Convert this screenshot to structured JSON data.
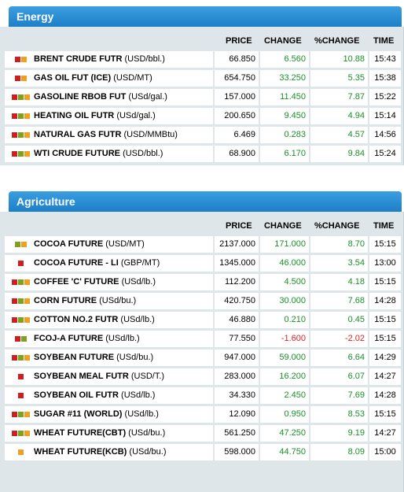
{
  "columns": {
    "price": "PRICE",
    "change": "CHANGE",
    "pchange": "%CHANGE",
    "time": "TIME"
  },
  "energy": {
    "title": "Energy",
    "rows": [
      {
        "name": "BRENT CRUDE FUTR",
        "unit": "(USD/bbl.)",
        "price": "66.850",
        "change": "6.560",
        "pchange": "10.88",
        "time": "15:43",
        "marks": [
          "#cc2020",
          "#f0a020"
        ],
        "negative": false
      },
      {
        "name": "GAS OIL FUT (ICE)",
        "unit": "(USD/MT)",
        "price": "654.750",
        "change": "33.250",
        "pchange": "5.35",
        "time": "15:38",
        "marks": [
          "#cc2020",
          "#f0a020"
        ],
        "negative": false
      },
      {
        "name": "GASOLINE RBOB FUT",
        "unit": "(USd/gal.)",
        "price": "157.000",
        "change": "11.450",
        "pchange": "7.87",
        "time": "15:22",
        "marks": [
          "#cc2020",
          "#80a020",
          "#f0a020"
        ],
        "negative": false
      },
      {
        "name": "HEATING OIL FUTR",
        "unit": "(USd/gal.)",
        "price": "200.650",
        "change": "9.450",
        "pchange": "4.94",
        "time": "15:14",
        "marks": [
          "#cc2020",
          "#80a020",
          "#f0a020"
        ],
        "negative": false
      },
      {
        "name": "NATURAL GAS FUTR",
        "unit": "(USD/MMBtu)",
        "price": "6.469",
        "change": "0.283",
        "pchange": "4.57",
        "time": "14:56",
        "marks": [
          "#cc2020",
          "#80a020",
          "#f0a020"
        ],
        "negative": false
      },
      {
        "name": "WTI CRUDE FUTURE",
        "unit": "(USD/bbl.)",
        "price": "68.900",
        "change": "6.170",
        "pchange": "9.84",
        "time": "15:24",
        "marks": [
          "#cc2020",
          "#80a020",
          "#f0a020"
        ],
        "negative": false
      }
    ]
  },
  "agriculture": {
    "title": "Agriculture",
    "rows": [
      {
        "name": "COCOA FUTURE",
        "unit": "(USD/MT)",
        "price": "2137.000",
        "change": "171.000",
        "pchange": "8.70",
        "time": "15:15",
        "marks": [
          "#80a020",
          "#f0a020"
        ],
        "negative": false
      },
      {
        "name": "COCOA FUTURE - LI",
        "unit": "(GBP/MT)",
        "price": "1345.000",
        "change": "46.000",
        "pchange": "3.54",
        "time": "13:00",
        "marks": [
          "#cc2020"
        ],
        "negative": false
      },
      {
        "name": "COFFEE 'C' FUTURE",
        "unit": "(USd/lb.)",
        "price": "112.200",
        "change": "4.500",
        "pchange": "4.18",
        "time": "15:15",
        "marks": [
          "#cc2020",
          "#80a020",
          "#f0a020"
        ],
        "negative": false
      },
      {
        "name": "CORN FUTURE",
        "unit": "(USd/bu.)",
        "price": "420.750",
        "change": "30.000",
        "pchange": "7.68",
        "time": "14:28",
        "marks": [
          "#cc2020",
          "#80a020",
          "#f0a020"
        ],
        "negative": false
      },
      {
        "name": "COTTON NO.2 FUTR",
        "unit": "(USd/lb.)",
        "price": "46.880",
        "change": "0.210",
        "pchange": "0.45",
        "time": "15:15",
        "marks": [
          "#cc2020",
          "#80a020",
          "#f0a020"
        ],
        "negative": false
      },
      {
        "name": "FCOJ-A FUTURE",
        "unit": "(USd/lb.)",
        "price": "77.550",
        "change": "-1.600",
        "pchange": "-2.02",
        "time": "15:15",
        "marks": [
          "#cc2020",
          "#80a020"
        ],
        "negative": true
      },
      {
        "name": "SOYBEAN FUTURE",
        "unit": "(USd/bu.)",
        "price": "947.000",
        "change": "59.000",
        "pchange": "6.64",
        "time": "14:29",
        "marks": [
          "#cc2020",
          "#80a020",
          "#f0a020"
        ],
        "negative": false
      },
      {
        "name": "SOYBEAN MEAL FUTR",
        "unit": "(USD/T.)",
        "price": "283.000",
        "change": "16.200",
        "pchange": "6.07",
        "time": "14:27",
        "marks": [
          "#cc2020"
        ],
        "negative": false
      },
      {
        "name": "SOYBEAN OIL FUTR",
        "unit": "(USd/lb.)",
        "price": "34.330",
        "change": "2.450",
        "pchange": "7.69",
        "time": "14:28",
        "marks": [
          "#cc2020"
        ],
        "negative": false
      },
      {
        "name": "SUGAR #11 (WORLD)",
        "unit": "(USd/lb.)",
        "price": "12.090",
        "change": "0.950",
        "pchange": "8.53",
        "time": "15:15",
        "marks": [
          "#cc2020",
          "#80a020",
          "#f0a020"
        ],
        "negative": false
      },
      {
        "name": "WHEAT FUTURE(CBT)",
        "unit": "(USd/bu.)",
        "price": "561.250",
        "change": "47.250",
        "pchange": "9.19",
        "time": "14:27",
        "marks": [
          "#cc2020",
          "#80a020",
          "#f0a020"
        ],
        "negative": false
      },
      {
        "name": "WHEAT FUTURE(KCB)",
        "unit": "(USd/bu.)",
        "price": "598.000",
        "change": "44.750",
        "pchange": "8.09",
        "time": "15:00",
        "marks": [
          "#f0a020"
        ],
        "negative": false
      }
    ]
  }
}
